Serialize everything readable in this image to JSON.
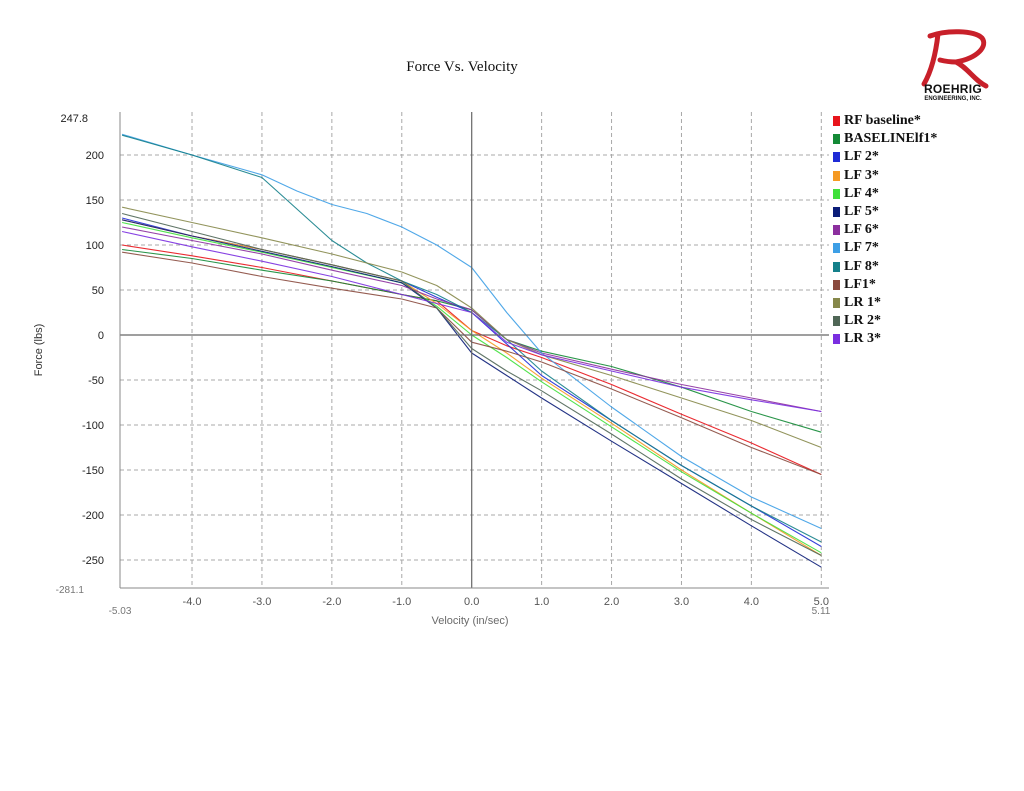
{
  "chart_data": {
    "type": "line",
    "title": "Force Vs. Velocity",
    "xlabel": "Velocity (in/sec)",
    "ylabel": "Force (lbs)",
    "xlim": [
      -5.03,
      5.11
    ],
    "ylim": [
      -281.1,
      247.8
    ],
    "x_ticks": [
      -4.0,
      -3.0,
      -2.0,
      -1.0,
      0.0,
      1.0,
      2.0,
      3.0,
      4.0,
      5.0
    ],
    "x_tick_labels": [
      "-4.0",
      "-3.0",
      "-2.0",
      "-1.0",
      "0.0",
      "1.0",
      "2.0",
      "3.0",
      "4.0",
      "5.0"
    ],
    "x_end_labels": [
      "-5.03",
      "5.11"
    ],
    "y_ticks": [
      200,
      150,
      100,
      50,
      0,
      -50,
      -100,
      -150,
      -200,
      -250
    ],
    "y_tick_labels": [
      "200",
      "150",
      "100",
      "50",
      "0",
      "-50",
      "-100",
      "-150",
      "-200",
      "-250"
    ],
    "y_end_labels": [
      "247.8",
      "-281.1"
    ],
    "grid": true,
    "legend_position": "right",
    "series": [
      {
        "name": "RF baseline*",
        "color": "#e8141b",
        "x": [
          -5.0,
          -4.0,
          -3.0,
          -2.0,
          -1.0,
          -0.5,
          0.0,
          0.5,
          1.0,
          2.0,
          3.0,
          4.0,
          5.0
        ],
        "y": [
          100,
          88,
          75,
          60,
          45,
          38,
          5,
          -12,
          -25,
          -55,
          -88,
          -120,
          -155
        ]
      },
      {
        "name": "BASELINElf1*",
        "color": "#138a36",
        "x": [
          -5.0,
          -4.0,
          -3.0,
          -2.0,
          -1.0,
          -0.5,
          0.0,
          0.5,
          1.0,
          2.0,
          3.0,
          4.0,
          5.0
        ],
        "y": [
          95,
          85,
          72,
          60,
          45,
          38,
          28,
          -5,
          -18,
          -35,
          -58,
          -85,
          -108
        ]
      },
      {
        "name": "LF 2*",
        "color": "#1f2bd6",
        "x": [
          -5.0,
          -4.0,
          -3.0,
          -2.0,
          -1.0,
          -0.5,
          0.0,
          0.5,
          1.0,
          2.0,
          3.0,
          4.0,
          5.0
        ],
        "y": [
          130,
          110,
          95,
          78,
          60,
          42,
          25,
          -10,
          -45,
          -95,
          -145,
          -190,
          -235
        ]
      },
      {
        "name": "LF 3*",
        "color": "#f59a23",
        "x": [
          -5.0,
          -4.0,
          -3.0,
          -2.0,
          -1.0,
          -0.5,
          0.0,
          0.5,
          1.0,
          2.0,
          3.0,
          4.0,
          5.0
        ],
        "y": [
          128,
          110,
          95,
          78,
          60,
          35,
          5,
          -20,
          -48,
          -98,
          -150,
          -198,
          -245
        ]
      },
      {
        "name": "LF 4*",
        "color": "#3fe03a",
        "x": [
          -5.0,
          -4.0,
          -3.0,
          -2.0,
          -1.0,
          -0.5,
          0.0,
          0.5,
          1.0,
          2.0,
          3.0,
          4.0,
          5.0
        ],
        "y": [
          125,
          108,
          92,
          75,
          58,
          32,
          0,
          -25,
          -52,
          -102,
          -152,
          -198,
          -242
        ]
      },
      {
        "name": "LF 5*",
        "color": "#0b1d78",
        "x": [
          -5.0,
          -4.0,
          -3.0,
          -2.0,
          -1.0,
          -0.5,
          0.0,
          0.5,
          1.0,
          2.0,
          3.0,
          4.0,
          5.0
        ],
        "y": [
          128,
          110,
          93,
          76,
          58,
          30,
          -20,
          -45,
          -70,
          -118,
          -165,
          -212,
          -258
        ]
      },
      {
        "name": "LF 6*",
        "color": "#8c2f9e",
        "x": [
          -5.0,
          -4.0,
          -3.0,
          -2.0,
          -1.0,
          -0.5,
          0.0,
          0.5,
          1.0,
          2.0,
          3.0,
          4.0,
          5.0
        ],
        "y": [
          120,
          105,
          90,
          72,
          55,
          40,
          28,
          -5,
          -20,
          -38,
          -55,
          -70,
          -85
        ]
      },
      {
        "name": "LF 7*",
        "color": "#3d9fe6",
        "x": [
          -5.0,
          -4.0,
          -3.0,
          -2.5,
          -2.0,
          -1.5,
          -1.0,
          -0.5,
          0.0,
          0.5,
          1.0,
          2.0,
          3.0,
          4.0,
          5.0
        ],
        "y": [
          223,
          200,
          178,
          160,
          145,
          135,
          120,
          100,
          75,
          25,
          -20,
          -80,
          -135,
          -180,
          -215
        ]
      },
      {
        "name": "LF 8*",
        "color": "#14808a",
        "x": [
          -5.0,
          -4.0,
          -3.0,
          -2.5,
          -2.0,
          -1.5,
          -1.0,
          -0.5,
          0.0,
          0.5,
          1.0,
          2.0,
          3.0,
          4.0,
          5.0
        ],
        "y": [
          222,
          200,
          175,
          140,
          105,
          80,
          60,
          45,
          25,
          -5,
          -40,
          -95,
          -145,
          -190,
          -230
        ]
      },
      {
        "name": "LF1*",
        "color": "#8a4a3e",
        "x": [
          -5.0,
          -4.0,
          -3.0,
          -2.0,
          -1.0,
          -0.5,
          0.0,
          0.5,
          1.0,
          2.0,
          3.0,
          4.0,
          5.0
        ],
        "y": [
          92,
          80,
          65,
          52,
          40,
          30,
          -8,
          -18,
          -30,
          -60,
          -92,
          -125,
          -155
        ]
      },
      {
        "name": "LR 1*",
        "color": "#86884a",
        "x": [
          -5.0,
          -4.0,
          -3.0,
          -2.0,
          -1.0,
          -0.5,
          0.0,
          0.5,
          1.0,
          2.0,
          3.0,
          4.0,
          5.0
        ],
        "y": [
          142,
          125,
          108,
          90,
          70,
          55,
          30,
          -5,
          -22,
          -45,
          -70,
          -95,
          -125
        ]
      },
      {
        "name": "LR 2*",
        "color": "#4f6656",
        "x": [
          -5.0,
          -4.0,
          -3.0,
          -2.0,
          -1.0,
          -0.5,
          0.0,
          0.5,
          1.0,
          2.0,
          3.0,
          4.0,
          5.0
        ],
        "y": [
          135,
          115,
          95,
          78,
          60,
          30,
          -15,
          -40,
          -62,
          -110,
          -160,
          -205,
          -245
        ]
      },
      {
        "name": "LR 3*",
        "color": "#7a2ee0",
        "x": [
          -5.0,
          -4.0,
          -3.0,
          -2.0,
          -1.0,
          -0.5,
          0.0,
          0.5,
          1.0,
          2.0,
          3.0,
          4.0,
          5.0
        ],
        "y": [
          115,
          98,
          82,
          65,
          45,
          35,
          25,
          -8,
          -22,
          -40,
          -58,
          -72,
          -85
        ]
      }
    ]
  },
  "logo": {
    "name": "ROEHRIG",
    "subtitle": "ENGINEERING, INC.",
    "mark_color": "#c8202a"
  }
}
